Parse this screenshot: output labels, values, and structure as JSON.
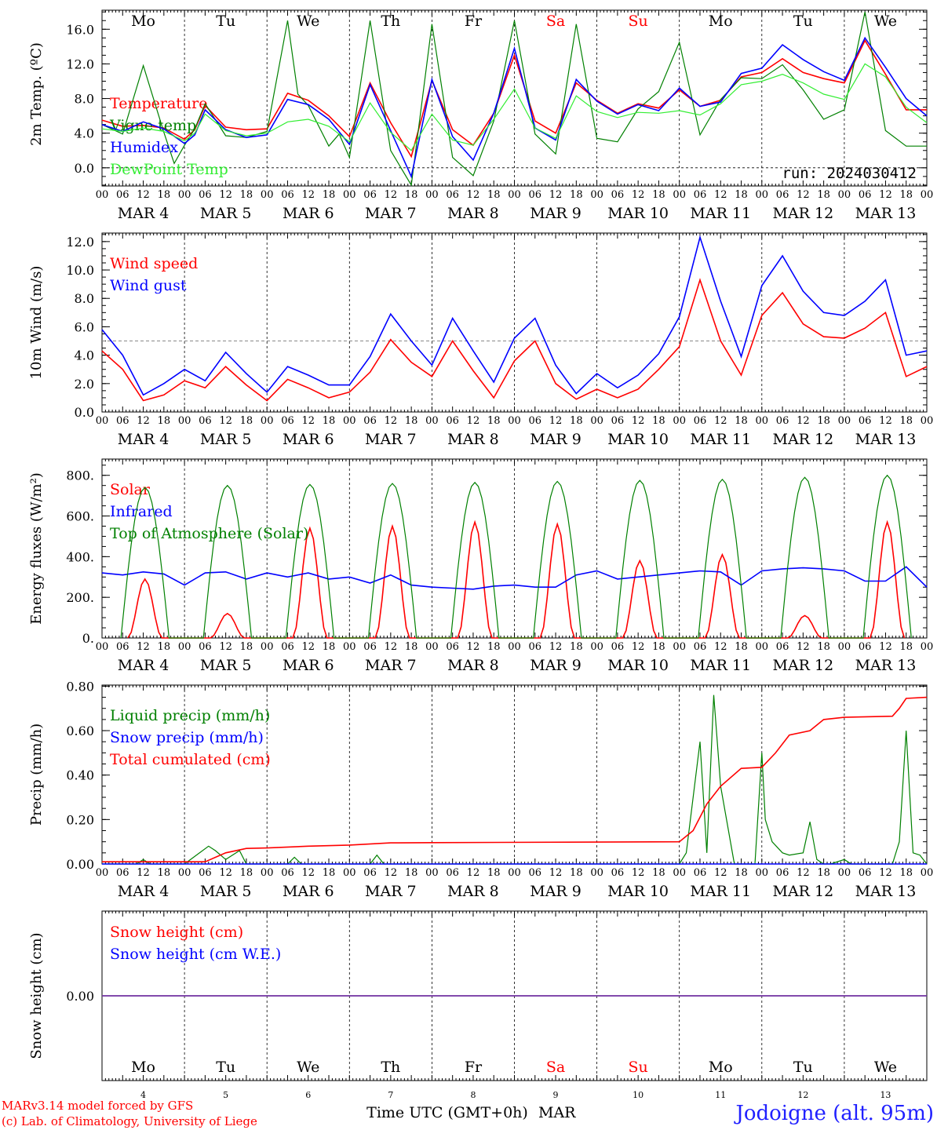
{
  "run_label": "run: 2024030412",
  "station": "Jodoigne (alt. 95m)",
  "credit_line1": "MARv3.14 model forced by GFS",
  "credit_line2": "(c) Lab. of Climatology, University of Liege",
  "xaxis_title": "Time UTC (GMT+0h)",
  "month": "MAR",
  "colors": {
    "red": "#ff0000",
    "blue": "#0000ff",
    "green": "#008000",
    "lightgreen": "#33ee33",
    "purple": "#7030a0",
    "weekend": "#ff0000"
  },
  "days": [
    "Mo",
    "Tu",
    "We",
    "Th",
    "Fr",
    "Sa",
    "Su",
    "Mo",
    "Tu",
    "We"
  ],
  "weekend_days": [
    "Sa",
    "Su"
  ],
  "dates": [
    "4",
    "5",
    "6",
    "7",
    "8",
    "9",
    "10",
    "11",
    "12",
    "13"
  ],
  "date_labels": [
    "MAR  4",
    "MAR  5",
    "MAR  6",
    "MAR  7",
    "MAR  8",
    "MAR  9",
    "MAR 10",
    "MAR 11",
    "MAR 12",
    "MAR 13"
  ],
  "hour_labels": [
    "00",
    "06",
    "12",
    "18"
  ],
  "final_hour_label": "00",
  "chart_data": [
    {
      "type": "line",
      "ylabel": "2m Temp. (ºC)",
      "ylim": [
        -2.1,
        18.2
      ],
      "yticks": [
        "16.0",
        "12.0",
        "8.0",
        "4.0",
        "0.0"
      ],
      "ytick_values": [
        16,
        12,
        8,
        4,
        0
      ],
      "x_unit": "hours since MAR 4 00 UTC",
      "grid": "vertical dashed lines at 00 UTC; horizontal dashed line at 0",
      "hline": 0,
      "legend_position": "left",
      "series": [
        {
          "name": "Temperature",
          "color": "red",
          "x": [
            0,
            6,
            12,
            18,
            24,
            27,
            30,
            36,
            42,
            48,
            54,
            60,
            66,
            72,
            78,
            84,
            90,
            96,
            102,
            108,
            114,
            120,
            126,
            132,
            138,
            144,
            150,
            156,
            162,
            168,
            174,
            180,
            186,
            192,
            198,
            204,
            210,
            216,
            222,
            228,
            234,
            240
          ],
          "values": [
            5.5,
            4.8,
            4.9,
            4.6,
            3.3,
            4.4,
            7.2,
            4.7,
            4.4,
            4.5,
            8.6,
            7.8,
            6.0,
            3.6,
            9.8,
            5.2,
            1.3,
            10.1,
            4.4,
            2.6,
            6.3,
            13.0,
            5.4,
            4.0,
            9.8,
            7.8,
            6.3,
            7.4,
            6.9,
            9.0,
            7.1,
            7.8,
            10.5,
            11.0,
            12.6,
            11.0,
            10.3,
            9.8,
            14.7,
            10.8,
            6.7,
            6.7
          ]
        },
        {
          "name": "Vigne temp",
          "color": "green",
          "x": [
            0,
            6,
            12,
            18,
            21,
            24,
            27,
            30,
            36,
            42,
            48,
            54,
            57,
            60,
            66,
            69,
            72,
            78,
            84,
            90,
            96,
            102,
            108,
            114,
            120,
            126,
            132,
            138,
            144,
            150,
            156,
            162,
            168,
            174,
            180,
            186,
            192,
            198,
            204,
            210,
            216,
            222,
            228,
            234,
            240
          ],
          "values": [
            5.0,
            3.9,
            11.8,
            4.1,
            0.5,
            2.6,
            4.5,
            7.4,
            3.7,
            3.5,
            4.2,
            17.0,
            8.5,
            7.2,
            2.5,
            3.9,
            1.2,
            17.0,
            2.0,
            -2.0,
            16.6,
            1.2,
            -0.9,
            5.4,
            17.0,
            3.9,
            1.6,
            16.6,
            3.4,
            3.0,
            6.8,
            8.8,
            14.5,
            3.8,
            7.9,
            10.4,
            10.3,
            11.9,
            9.0,
            5.6,
            6.7,
            18.0,
            4.3,
            2.5,
            2.5
          ]
        },
        {
          "name": "Humidex",
          "color": "blue",
          "x": [
            0,
            6,
            12,
            18,
            24,
            27,
            30,
            36,
            42,
            48,
            54,
            60,
            66,
            72,
            78,
            84,
            90,
            96,
            102,
            108,
            114,
            120,
            126,
            132,
            138,
            144,
            150,
            156,
            162,
            168,
            174,
            180,
            186,
            192,
            198,
            204,
            210,
            216,
            222,
            228,
            234,
            240
          ],
          "values": [
            5.0,
            4.2,
            5.3,
            4.5,
            2.8,
            3.8,
            6.7,
            4.4,
            3.5,
            3.8,
            7.9,
            7.3,
            5.6,
            2.7,
            9.6,
            4.3,
            -1.0,
            10.2,
            3.6,
            0.9,
            6.3,
            13.8,
            4.6,
            3.2,
            10.2,
            7.7,
            6.2,
            7.3,
            6.6,
            9.2,
            7.1,
            7.6,
            10.9,
            11.5,
            14.2,
            12.5,
            11.1,
            10.1,
            15.0,
            11.6,
            8.0,
            6.0
          ]
        },
        {
          "name": "DewPoint Temp",
          "color": "lightgreen",
          "x": [
            0,
            6,
            12,
            18,
            24,
            27,
            30,
            36,
            42,
            48,
            54,
            60,
            66,
            72,
            78,
            84,
            90,
            96,
            102,
            108,
            114,
            120,
            126,
            132,
            138,
            144,
            150,
            156,
            162,
            168,
            174,
            180,
            186,
            192,
            198,
            204,
            210,
            216,
            222,
            228,
            234,
            240
          ],
          "values": [
            4.5,
            4.2,
            4.6,
            4.2,
            3.1,
            4.0,
            6.2,
            4.3,
            3.7,
            4.0,
            5.3,
            5.6,
            4.8,
            3.0,
            7.5,
            4.1,
            2.0,
            6.2,
            3.2,
            2.6,
            5.6,
            9.1,
            4.6,
            3.4,
            8.3,
            6.5,
            5.8,
            6.4,
            6.3,
            6.6,
            6.1,
            7.4,
            9.6,
            10.0,
            10.8,
            9.8,
            8.5,
            7.9,
            12.0,
            10.5,
            7.0,
            5.2
          ]
        }
      ]
    },
    {
      "type": "line",
      "ylabel": "10m Wind (m/s)",
      "ylim": [
        0,
        12.6
      ],
      "yticks": [
        "12.0",
        "10.0",
        "8.0",
        "6.0",
        "4.0",
        "2.0",
        "0.0"
      ],
      "ytick_values": [
        12,
        10,
        8,
        6,
        4,
        2,
        0
      ],
      "hline": 5,
      "legend_position": "left",
      "series": [
        {
          "name": "Wind speed",
          "color": "red",
          "x": [
            0,
            6,
            12,
            18,
            24,
            30,
            36,
            42,
            48,
            54,
            60,
            66,
            72,
            78,
            84,
            90,
            96,
            102,
            108,
            114,
            120,
            126,
            132,
            138,
            144,
            150,
            156,
            162,
            168,
            174,
            180,
            186,
            192,
            198,
            204,
            210,
            216,
            222,
            228,
            234,
            240
          ],
          "values": [
            4.3,
            3.0,
            0.8,
            1.2,
            2.2,
            1.7,
            3.2,
            1.9,
            0.8,
            2.3,
            1.7,
            1.0,
            1.4,
            2.8,
            5.1,
            3.5,
            2.5,
            5.0,
            2.9,
            1.0,
            3.6,
            5.0,
            2.0,
            0.9,
            1.6,
            1.0,
            1.6,
            3.0,
            4.6,
            9.3,
            5.0,
            2.6,
            6.8,
            8.4,
            6.2,
            5.3,
            5.2,
            5.9,
            7.0,
            2.5,
            3.2
          ]
        },
        {
          "name": "Wind gust",
          "color": "blue",
          "x": [
            0,
            6,
            12,
            18,
            24,
            30,
            36,
            42,
            48,
            54,
            60,
            66,
            72,
            78,
            84,
            90,
            96,
            102,
            108,
            114,
            120,
            126,
            132,
            138,
            144,
            150,
            156,
            162,
            168,
            174,
            180,
            186,
            192,
            198,
            204,
            210,
            216,
            222,
            228,
            234,
            240
          ],
          "values": [
            5.8,
            4.0,
            1.2,
            2.0,
            3.0,
            2.2,
            4.2,
            2.7,
            1.4,
            3.2,
            2.6,
            1.9,
            1.9,
            3.9,
            6.9,
            5.0,
            3.3,
            6.6,
            4.3,
            2.1,
            5.2,
            6.6,
            3.3,
            1.3,
            2.7,
            1.7,
            2.6,
            4.1,
            6.7,
            12.3,
            7.8,
            3.9,
            8.9,
            11.0,
            8.5,
            7.0,
            6.8,
            7.8,
            9.3,
            4.0,
            4.3
          ]
        }
      ]
    },
    {
      "type": "line",
      "ylabel": "Energy fluxes (W/m²)",
      "ylim": [
        0,
        880
      ],
      "yticks": [
        "800.",
        "600.",
        "400.",
        "200.",
        "0."
      ],
      "ytick_values": [
        800,
        600,
        400,
        200,
        0
      ],
      "legend_position": "left",
      "series": [
        {
          "name": "Solar",
          "color": "red",
          "daily_peaks": [
            290,
            120,
            540,
            550,
            570,
            560,
            380,
            410,
            110,
            570
          ]
        },
        {
          "name": "Infrared",
          "color": "blue",
          "x": [
            0,
            6,
            12,
            18,
            24,
            30,
            36,
            42,
            48,
            54,
            60,
            66,
            72,
            78,
            84,
            90,
            96,
            102,
            108,
            114,
            120,
            126,
            132,
            138,
            144,
            150,
            156,
            162,
            168,
            174,
            180,
            186,
            192,
            198,
            204,
            210,
            216,
            222,
            228,
            234,
            240
          ],
          "values": [
            320,
            310,
            325,
            315,
            260,
            320,
            325,
            290,
            320,
            300,
            320,
            290,
            300,
            270,
            310,
            260,
            250,
            245,
            240,
            255,
            260,
            250,
            250,
            310,
            330,
            290,
            300,
            310,
            320,
            330,
            325,
            260,
            330,
            340,
            345,
            340,
            330,
            280,
            280,
            350,
            250
          ]
        },
        {
          "name": "Top of Atmosphere (Solar)",
          "color": "green",
          "daily_peaks": [
            740,
            750,
            755,
            760,
            765,
            770,
            775,
            780,
            790,
            800
          ]
        }
      ]
    },
    {
      "type": "line",
      "ylabel": "Precip (mm/h)",
      "ylim": [
        0,
        0.805
      ],
      "yticks": [
        "0.80",
        "0.60",
        "0.40",
        "0.20",
        "0.00"
      ],
      "ytick_values": [
        0.8,
        0.6,
        0.4,
        0.2,
        0
      ],
      "legend_position": "left",
      "series": [
        {
          "name": "Liquid precip (mm/h)",
          "color": "green",
          "x": [
            0,
            10,
            12,
            14,
            24,
            31,
            33,
            36,
            40,
            42,
            44,
            54,
            56,
            58,
            78,
            80,
            82,
            96,
            144,
            168,
            170,
            174,
            176,
            178,
            180,
            184,
            186,
            188,
            190,
            192,
            193,
            195,
            198,
            200,
            204,
            206,
            208,
            210,
            212,
            216,
            218,
            230,
            232,
            234,
            236,
            238,
            240
          ],
          "values": [
            0,
            0,
            0.02,
            0,
            0,
            0.08,
            0.06,
            0.02,
            0.06,
            0,
            0,
            0,
            0.03,
            0,
            0,
            0.04,
            0,
            0,
            0,
            0,
            0.05,
            0.55,
            0.05,
            0.76,
            0.35,
            0,
            0,
            0,
            0,
            0.5,
            0.2,
            0.1,
            0.05,
            0.04,
            0.05,
            0.19,
            0.02,
            0,
            0,
            0.02,
            0,
            0,
            0.1,
            0.6,
            0.05,
            0.04,
            0
          ]
        },
        {
          "name": "Snow precip (mm/h)",
          "color": "blue",
          "x": [
            0,
            240
          ],
          "values": [
            0,
            0
          ]
        },
        {
          "name": "Total cumulated (cm)",
          "color": "red",
          "x": [
            0,
            30,
            36,
            42,
            48,
            60,
            72,
            84,
            96,
            168,
            172,
            176,
            180,
            186,
            192,
            196,
            200,
            206,
            210,
            216,
            230,
            232,
            234,
            240
          ],
          "values": [
            0.01,
            0.01,
            0.05,
            0.07,
            0.072,
            0.08,
            0.085,
            0.095,
            0.096,
            0.1,
            0.15,
            0.27,
            0.35,
            0.43,
            0.435,
            0.5,
            0.58,
            0.6,
            0.65,
            0.66,
            0.665,
            0.7,
            0.745,
            0.75
          ]
        }
      ]
    },
    {
      "type": "line",
      "ylabel": "Snow height (cm)",
      "ylim": [
        -0.015,
        0.015
      ],
      "yticks": [
        "0.00"
      ],
      "ytick_values": [
        0
      ],
      "legend_position": "left",
      "series": [
        {
          "name": "Snow height (cm)",
          "color": "red",
          "x": [
            0,
            240
          ],
          "values": [
            0,
            0
          ]
        },
        {
          "name": "Snow height (cm W.E.)",
          "color": "blue",
          "x": [
            0,
            240
          ],
          "values": [
            0,
            0
          ]
        }
      ]
    }
  ]
}
